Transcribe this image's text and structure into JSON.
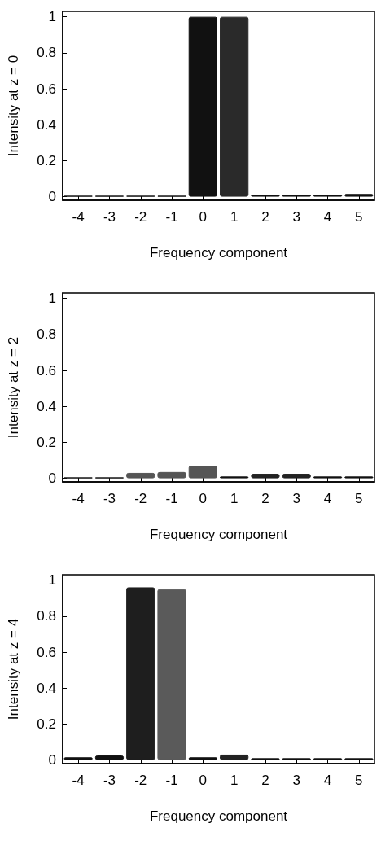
{
  "chart_data": [
    {
      "type": "bar",
      "xlabel": "Frequency component",
      "ylabel": "Intensity at z = 0",
      "categories": [
        "-4",
        "-3",
        "-2",
        "-1",
        "0",
        "1",
        "2",
        "3",
        "4",
        "5"
      ],
      "values": [
        0.005,
        0.005,
        0.005,
        0.005,
        1,
        1,
        0.01,
        0.01,
        0.01,
        0.015
      ],
      "colors": [
        "#111111",
        "#111111",
        "#111111",
        "#111111",
        "#111111",
        "#2a2a2a",
        "#111111",
        "#111111",
        "#111111",
        "#111111"
      ],
      "ylim": [
        -0.02,
        1.03
      ],
      "yticks": [
        0,
        0.2,
        0.4,
        0.6,
        0.8,
        1
      ],
      "grid": false
    },
    {
      "type": "bar",
      "xlabel": "Frequency component",
      "ylabel": "Intensity at z = 2",
      "categories": [
        "-4",
        "-3",
        "-2",
        "-1",
        "0",
        "1",
        "2",
        "3",
        "4",
        "5"
      ],
      "values": [
        0.005,
        0.005,
        0.03,
        0.035,
        0.07,
        0.01,
        0.025,
        0.025,
        0.01,
        0.01
      ],
      "colors": [
        "#111111",
        "#111111",
        "#555555",
        "#555555",
        "#555555",
        "#111111",
        "#222222",
        "#222222",
        "#111111",
        "#111111"
      ],
      "ylim": [
        -0.02,
        1.03
      ],
      "yticks": [
        0,
        0.2,
        0.4,
        0.6,
        0.8,
        1
      ],
      "grid": false
    },
    {
      "type": "bar",
      "xlabel": "Frequency component",
      "ylabel": "Intensity at z = 4",
      "categories": [
        "-4",
        "-3",
        "-2",
        "-1",
        "0",
        "1",
        "2",
        "3",
        "4",
        "5"
      ],
      "values": [
        0.015,
        0.025,
        0.96,
        0.95,
        0.015,
        0.03,
        0.01,
        0.01,
        0.01,
        0.01
      ],
      "colors": [
        "#111111",
        "#111111",
        "#1e1e1e",
        "#5a5a5a",
        "#111111",
        "#222222",
        "#111111",
        "#111111",
        "#111111",
        "#111111"
      ],
      "ylim": [
        -0.02,
        1.03
      ],
      "yticks": [
        0,
        0.2,
        0.4,
        0.6,
        0.8,
        1
      ],
      "grid": false
    }
  ]
}
